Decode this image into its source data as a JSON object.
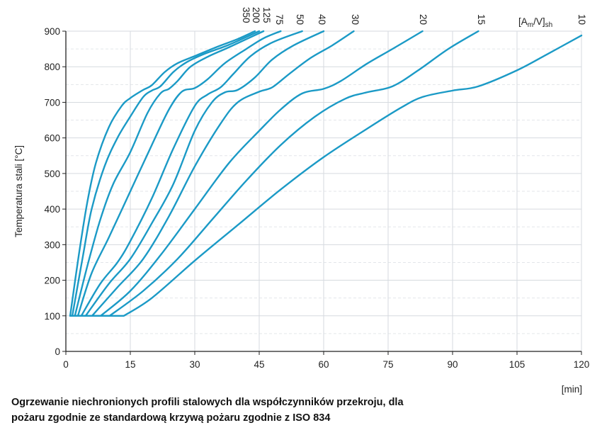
{
  "chart_data": {
    "type": "line",
    "title": "Ogrzewanie niechronionych profili stalowych dla współczynników przekroju, dla pożaru zgodnie ze standardową krzywą pożaru zgodnie z ISO 834",
    "caption_lines": [
      "Ogrzewanie niechronionych profili stalowych dla współczynników przekroju, dla",
      "pożaru zgodnie ze standardową krzywą pożaru zgodnie z ISO 834"
    ],
    "xlabel": "[min]",
    "ylabel": "Temperatura stali [°C]",
    "legend_title": "[Am/V]sh",
    "legend_title_parts": {
      "main": "[A",
      "sub1": "m",
      "mid": "/V]",
      "sub2": "sh"
    },
    "xlim": [
      0,
      120
    ],
    "ylim": [
      0,
      900
    ],
    "xticks": [
      0,
      15,
      30,
      45,
      60,
      75,
      90,
      105,
      120
    ],
    "yticks": [
      0,
      100,
      200,
      300,
      400,
      500,
      600,
      700,
      800,
      900
    ],
    "grid": true,
    "line_color": "#1b9ac6",
    "series": [
      {
        "name": "350",
        "points": [
          [
            1.0,
            100
          ],
          [
            3,
            270
          ],
          [
            5,
            420
          ],
          [
            7,
            530
          ],
          [
            10,
            630
          ],
          [
            13,
            690
          ],
          [
            15,
            712
          ],
          [
            18,
            735
          ],
          [
            20,
            748
          ],
          [
            23,
            785
          ],
          [
            26,
            810
          ],
          [
            30,
            830
          ],
          [
            35,
            855
          ],
          [
            40,
            878
          ],
          [
            44,
            900
          ]
        ]
      },
      {
        "name": "200",
        "points": [
          [
            1.5,
            100
          ],
          [
            4,
            270
          ],
          [
            6,
            400
          ],
          [
            9,
            520
          ],
          [
            12,
            600
          ],
          [
            15,
            660
          ],
          [
            18,
            715
          ],
          [
            20,
            733
          ],
          [
            22,
            745
          ],
          [
            25,
            785
          ],
          [
            28,
            812
          ],
          [
            32,
            835
          ],
          [
            38,
            862
          ],
          [
            45,
            900
          ]
        ]
      },
      {
        "name": "125",
        "points": [
          [
            2.1,
            100
          ],
          [
            5,
            240
          ],
          [
            8,
            370
          ],
          [
            11,
            470
          ],
          [
            15,
            560
          ],
          [
            19,
            670
          ],
          [
            22,
            725
          ],
          [
            24,
            738
          ],
          [
            26,
            760
          ],
          [
            29,
            800
          ],
          [
            33,
            828
          ],
          [
            38,
            855
          ],
          [
            46,
            900
          ]
        ]
      },
      {
        "name": "75",
        "points": [
          [
            2.8,
            100
          ],
          [
            6,
            220
          ],
          [
            10,
            320
          ],
          [
            15,
            450
          ],
          [
            20,
            580
          ],
          [
            24,
            680
          ],
          [
            27,
            730
          ],
          [
            30,
            740
          ],
          [
            33,
            765
          ],
          [
            37,
            810
          ],
          [
            42,
            850
          ],
          [
            46,
            880
          ],
          [
            50,
            900
          ]
        ]
      },
      {
        "name": "50",
        "points": [
          [
            3.6,
            100
          ],
          [
            8,
            190
          ],
          [
            12,
            250
          ],
          [
            15,
            310
          ],
          [
            20,
            430
          ],
          [
            25,
            570
          ],
          [
            30,
            690
          ],
          [
            33,
            722
          ],
          [
            36,
            742
          ],
          [
            39,
            780
          ],
          [
            43,
            830
          ],
          [
            48,
            868
          ],
          [
            55,
            900
          ]
        ]
      },
      {
        "name": "40",
        "points": [
          [
            4.6,
            100
          ],
          [
            10,
            190
          ],
          [
            15,
            260
          ],
          [
            20,
            360
          ],
          [
            25,
            470
          ],
          [
            30,
            620
          ],
          [
            34,
            700
          ],
          [
            37,
            728
          ],
          [
            40,
            735
          ],
          [
            44,
            770
          ],
          [
            48,
            820
          ],
          [
            53,
            860
          ],
          [
            60,
            900
          ]
        ]
      },
      {
        "name": "30",
        "points": [
          [
            6.1,
            100
          ],
          [
            12,
            180
          ],
          [
            18,
            260
          ],
          [
            24,
            380
          ],
          [
            30,
            520
          ],
          [
            36,
            640
          ],
          [
            40,
            700
          ],
          [
            45,
            730
          ],
          [
            48,
            742
          ],
          [
            52,
            780
          ],
          [
            57,
            825
          ],
          [
            62,
            860
          ],
          [
            67,
            900
          ]
        ]
      },
      {
        "name": "20",
        "points": [
          [
            8.1,
            100
          ],
          [
            15,
            170
          ],
          [
            22,
            270
          ],
          [
            30,
            400
          ],
          [
            38,
            530
          ],
          [
            45,
            620
          ],
          [
            50,
            680
          ],
          [
            55,
            725
          ],
          [
            60,
            738
          ],
          [
            64,
            760
          ],
          [
            70,
            808
          ],
          [
            76,
            850
          ],
          [
            83,
            900
          ]
        ]
      },
      {
        "name": "15",
        "points": [
          [
            10.2,
            100
          ],
          [
            18,
            170
          ],
          [
            26,
            260
          ],
          [
            34,
            370
          ],
          [
            42,
            480
          ],
          [
            50,
            580
          ],
          [
            58,
            660
          ],
          [
            65,
            710
          ],
          [
            70,
            728
          ],
          [
            76,
            745
          ],
          [
            82,
            790
          ],
          [
            89,
            850
          ],
          [
            96,
            900
          ]
        ]
      },
      {
        "name": "10",
        "points": [
          [
            13.5,
            100
          ],
          [
            20,
            150
          ],
          [
            30,
            255
          ],
          [
            40,
            355
          ],
          [
            50,
            455
          ],
          [
            60,
            546
          ],
          [
            70,
            625
          ],
          [
            78,
            685
          ],
          [
            83,
            715
          ],
          [
            90,
            733
          ],
          [
            96,
            745
          ],
          [
            105,
            790
          ],
          [
            112,
            835
          ],
          [
            120,
            888
          ]
        ]
      }
    ]
  }
}
